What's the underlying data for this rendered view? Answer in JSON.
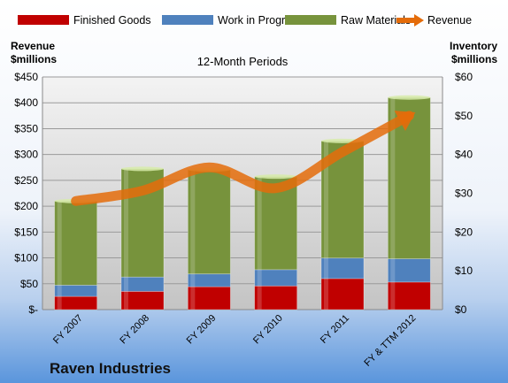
{
  "chart_data": {
    "type": "bar",
    "subtitle": "12-Month Periods",
    "company": "Raven Industries",
    "categories": [
      "FY 2007",
      "FY 2008",
      "FY 2009",
      "FY 2010",
      "FY 2011",
      "FY & TTM 2012"
    ],
    "left_axis": {
      "label_line1": "Revenue",
      "label_line2": "$millions",
      "range": [
        0,
        450
      ],
      "ticks": [
        0,
        50,
        100,
        150,
        200,
        250,
        300,
        350,
        400,
        450
      ],
      "tick_labels": [
        "$-",
        "$50",
        "$100",
        "$150",
        "$200",
        "$250",
        "$300",
        "$350",
        "$400",
        "$450"
      ]
    },
    "right_axis": {
      "label_line1": "Inventory",
      "label_line2": "$millions",
      "range": [
        0,
        60
      ],
      "ticks": [
        0,
        10,
        20,
        30,
        40,
        50,
        60
      ],
      "tick_labels": [
        "$0",
        "$10",
        "$20",
        "$30",
        "$40",
        "$50",
        "$60"
      ]
    },
    "stacked_series": [
      {
        "name": "Finished Goods",
        "axis": "right",
        "color": "#c00000",
        "values": [
          3.4,
          4.7,
          5.9,
          6.1,
          8.0,
          7.1
        ]
      },
      {
        "name": "Work in Progress",
        "axis": "right",
        "color": "#4f81bd",
        "values": [
          2.9,
          3.7,
          3.3,
          4.2,
          5.3,
          6.0
        ]
      },
      {
        "name": "Raw Materials",
        "axis": "right",
        "color": "#77933c",
        "values": [
          21.7,
          27.9,
          26.9,
          24.0,
          30.2,
          41.6
        ]
      }
    ],
    "line_series": {
      "name": "Revenue",
      "axis": "left",
      "color": "#e46c0a",
      "values": [
        210,
        230,
        275,
        235,
        305,
        375
      ]
    },
    "grid": true,
    "legend_position": "top"
  }
}
